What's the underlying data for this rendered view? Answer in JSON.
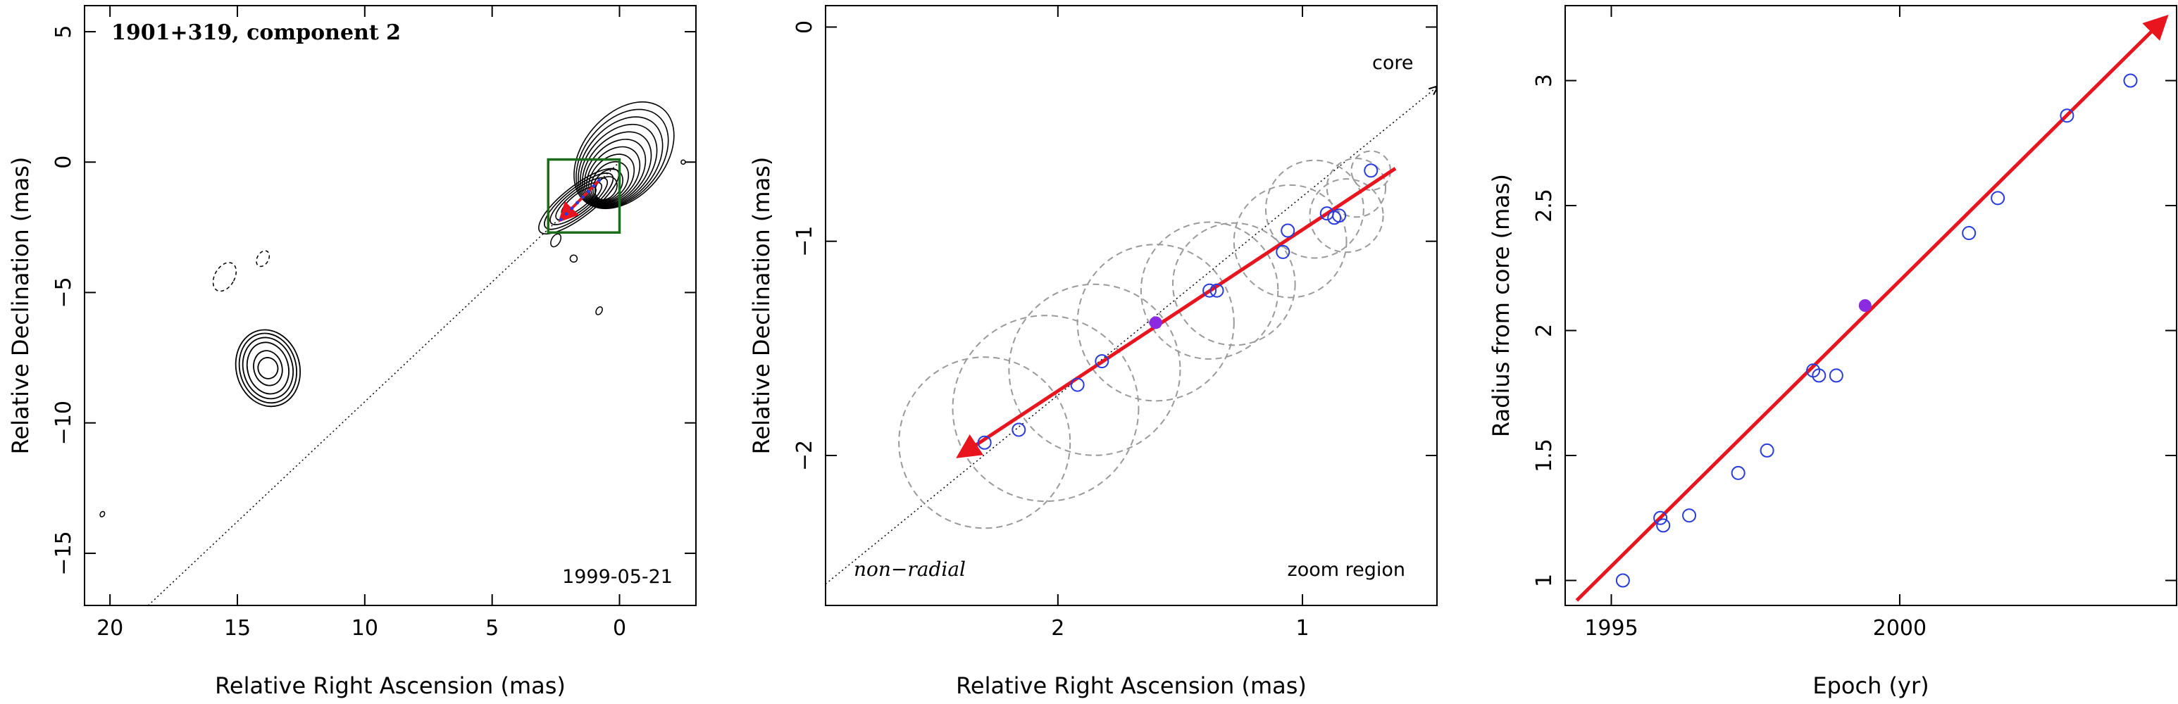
{
  "chart_data": [
    {
      "type": "contour",
      "title": "",
      "xlabel": "Relative Right Ascension (mas)",
      "ylabel": "Relative Declination (mas)",
      "xlim": [
        21,
        -3
      ],
      "ylim": [
        -17,
        6
      ],
      "xticks": [
        20,
        15,
        10,
        5,
        0
      ],
      "yticks": [
        5,
        0,
        -5,
        -10,
        -15
      ],
      "annotations": {
        "source": "1901+319, component 2",
        "date": "1999-05-21"
      },
      "zoom_box": {
        "x": [
          2.8,
          0.0
        ],
        "y": [
          -2.7,
          0.1
        ],
        "color": "#1a6e1a"
      },
      "radial_line": {
        "from": [
          18.5,
          -17
        ],
        "to": [
          0,
          0
        ]
      },
      "arrow": {
        "from": [
          2.3,
          -2.2
        ],
        "to": [
          0.8,
          -0.7
        ],
        "color": "#e8141e"
      },
      "contour_groups": [
        {
          "name": "core",
          "center": [
            0.1,
            0.1
          ]
        },
        {
          "name": "component",
          "center": [
            13.8,
            -7.9
          ]
        }
      ],
      "grid": false,
      "legend": null
    },
    {
      "type": "scatter",
      "title": "",
      "xlabel": "Relative Right Ascension (mas)",
      "ylabel": "Relative Declination (mas)",
      "xlim": [
        2.95,
        0.45
      ],
      "ylim": [
        -2.7,
        0.1
      ],
      "xticks": [
        2,
        1
      ],
      "yticks": [
        0,
        -1,
        -2
      ],
      "annotations": {
        "core_label": "core",
        "non_radial": "non−radial",
        "zoom": "zoom region"
      },
      "points": [
        {
          "x": 2.3,
          "y": -1.94
        },
        {
          "x": 2.16,
          "y": -1.88
        },
        {
          "x": 1.92,
          "y": -1.67
        },
        {
          "x": 1.82,
          "y": -1.56
        },
        {
          "x": 1.38,
          "y": -1.23
        },
        {
          "x": 1.35,
          "y": -1.23
        },
        {
          "x": 1.08,
          "y": -1.05
        },
        {
          "x": 1.06,
          "y": -0.95
        },
        {
          "x": 0.9,
          "y": -0.87
        },
        {
          "x": 0.87,
          "y": -0.89
        },
        {
          "x": 0.85,
          "y": -0.88
        },
        {
          "x": 0.72,
          "y": -0.67
        }
      ],
      "highlight_point": {
        "x": 1.6,
        "y": -1.38,
        "color": "#8a2be2"
      },
      "circles": [
        {
          "x": 2.3,
          "y": -1.94,
          "r": 0.35
        },
        {
          "x": 2.05,
          "y": -1.78,
          "r": 0.38
        },
        {
          "x": 1.85,
          "y": -1.6,
          "r": 0.35
        },
        {
          "x": 1.6,
          "y": -1.38,
          "r": 0.32
        },
        {
          "x": 1.38,
          "y": -1.23,
          "r": 0.28
        },
        {
          "x": 1.28,
          "y": -1.2,
          "r": 0.25
        },
        {
          "x": 1.05,
          "y": -1.0,
          "r": 0.23
        },
        {
          "x": 0.95,
          "y": -0.85,
          "r": 0.2
        },
        {
          "x": 0.82,
          "y": -0.88,
          "r": 0.15
        },
        {
          "x": 0.78,
          "y": -0.75,
          "r": 0.12
        },
        {
          "x": 0.72,
          "y": -0.67,
          "r": 0.08
        }
      ],
      "fit_arrow": {
        "from": [
          2.4,
          -2.0
        ],
        "to": [
          0.62,
          -0.66
        ],
        "color": "#e8141e"
      },
      "radial_line": {
        "from": [
          2.95,
          -2.6
        ],
        "to": [
          0.45,
          -0.28
        ]
      },
      "grid": false,
      "legend": null
    },
    {
      "type": "scatter",
      "title": "",
      "xlabel": "Epoch (yr)",
      "ylabel": "Radius from core (mas)",
      "xlim": [
        1994.2,
        2004.8
      ],
      "ylim": [
        0.9,
        3.3
      ],
      "xticks": [
        1995,
        2000
      ],
      "yticks": [
        1,
        1.5,
        2,
        2.5,
        3
      ],
      "points": [
        {
          "x": 1995.2,
          "y": 1.0
        },
        {
          "x": 1995.85,
          "y": 1.25
        },
        {
          "x": 1995.9,
          "y": 1.22
        },
        {
          "x": 1996.35,
          "y": 1.26
        },
        {
          "x": 1997.2,
          "y": 1.43
        },
        {
          "x": 1997.7,
          "y": 1.52
        },
        {
          "x": 1998.5,
          "y": 1.84
        },
        {
          "x": 1998.6,
          "y": 1.82
        },
        {
          "x": 1998.9,
          "y": 1.82
        },
        {
          "x": 2001.2,
          "y": 2.39
        },
        {
          "x": 2001.7,
          "y": 2.53
        },
        {
          "x": 2002.9,
          "y": 2.86
        },
        {
          "x": 2004.0,
          "y": 3.0
        }
      ],
      "highlight_point": {
        "x": 1999.4,
        "y": 2.1,
        "color": "#8a2be2"
      },
      "fit_arrow": {
        "from": [
          1994.4,
          0.92
        ],
        "to": [
          2004.6,
          3.25
        ],
        "color": "#e8141e"
      },
      "grid": false,
      "legend": null
    }
  ],
  "colors": {
    "marker": "#2a3bdc",
    "highlight": "#8a2be2",
    "fit": "#e8141e",
    "zoom_box": "#1a6e1a",
    "circles": "#9a9a9a",
    "axis": "#000000"
  }
}
